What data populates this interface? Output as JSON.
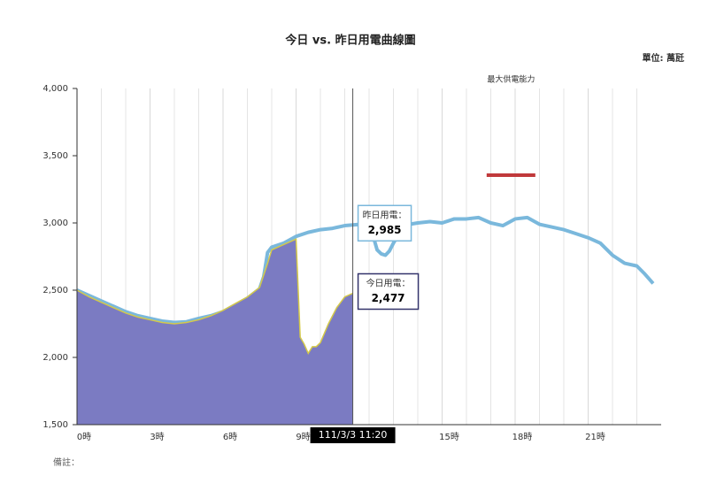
{
  "chart_data": {
    "type": "line",
    "title": "今日 vs. 昨日用電曲線圖",
    "unit_label": "單位: 萬瓩",
    "note": "備註：",
    "xlim": [
      0,
      24
    ],
    "xticks": [
      {
        "value": 0,
        "label": "0時"
      },
      {
        "value": 3,
        "label": "3時"
      },
      {
        "value": 6,
        "label": "6時"
      },
      {
        "value": 9,
        "label": "9時"
      },
      {
        "value": 15,
        "label": "15時"
      },
      {
        "value": 18,
        "label": "18時"
      },
      {
        "value": 21,
        "label": "21時"
      }
    ],
    "ylim": [
      1500,
      4000
    ],
    "yticks": [
      {
        "value": 1500,
        "label": "1,500"
      },
      {
        "value": 2000,
        "label": "2,000"
      },
      {
        "value": 2500,
        "label": "2,500"
      },
      {
        "value": 3000,
        "label": "3,000"
      },
      {
        "value": 3500,
        "label": "3,500"
      },
      {
        "value": 4000,
        "label": "4,000"
      }
    ],
    "series": [
      {
        "name": "昨日用電",
        "color": "#7ab8dc",
        "style": "line",
        "x": [
          0,
          0.5,
          1,
          1.5,
          2,
          2.5,
          3,
          3.5,
          4,
          4.5,
          5,
          5.5,
          6,
          6.5,
          7,
          7.5,
          7.67,
          7.83,
          8,
          8.5,
          9,
          9.5,
          10,
          10.5,
          11,
          11.33,
          11.67,
          12,
          12.17,
          12.33,
          12.5,
          12.67,
          12.83,
          13,
          13.33,
          13.67,
          14,
          14.5,
          15,
          15.5,
          16,
          16.5,
          17,
          17.5,
          18,
          18.5,
          19,
          19.5,
          20,
          20.5,
          21,
          21.5,
          22,
          22.5,
          23,
          23.33,
          23.67
        ],
        "values": [
          2500,
          2460,
          2420,
          2380,
          2340,
          2310,
          2290,
          2270,
          2260,
          2265,
          2290,
          2310,
          2340,
          2390,
          2440,
          2510,
          2600,
          2780,
          2820,
          2850,
          2900,
          2930,
          2950,
          2960,
          2980,
          2985,
          2990,
          2970,
          2900,
          2800,
          2770,
          2760,
          2790,
          2850,
          2950,
          2990,
          3000,
          3010,
          3000,
          3030,
          3030,
          3040,
          3000,
          2980,
          3030,
          3040,
          2990,
          2970,
          2950,
          2920,
          2890,
          2850,
          2760,
          2700,
          2680,
          2620,
          2550
        ]
      },
      {
        "name": "今日用電",
        "color": "#7b7bc2",
        "outline": "#d4c94a",
        "style": "area",
        "x": [
          0,
          0.5,
          1,
          1.5,
          2,
          2.5,
          3,
          3.5,
          4,
          4.5,
          5,
          5.5,
          6,
          6.5,
          7,
          7.5,
          7.83,
          8,
          8.5,
          9,
          9.17,
          9.33,
          9.5,
          9.67,
          9.83,
          10,
          10.33,
          10.67,
          11,
          11.33
        ],
        "values": [
          2500,
          2450,
          2410,
          2370,
          2330,
          2300,
          2280,
          2260,
          2250,
          2260,
          2280,
          2310,
          2350,
          2400,
          2450,
          2520,
          2700,
          2800,
          2840,
          2880,
          2150,
          2100,
          2030,
          2080,
          2080,
          2110,
          2250,
          2370,
          2450,
          2477
        ]
      }
    ],
    "capacity": {
      "label": "最大供電能力",
      "value": 3355,
      "x": [
        16.83,
        18.83
      ],
      "color": "#c0393b"
    },
    "cursor": {
      "x": 11.33,
      "label": "111/3/3 11:20"
    },
    "tooltips": [
      {
        "title": "昨日用電：",
        "value": "2,985",
        "series": 0,
        "border": "#7ab8dc"
      },
      {
        "title": "今日用電：",
        "value": "2,477",
        "series": 1,
        "border": "#33336b"
      }
    ]
  }
}
